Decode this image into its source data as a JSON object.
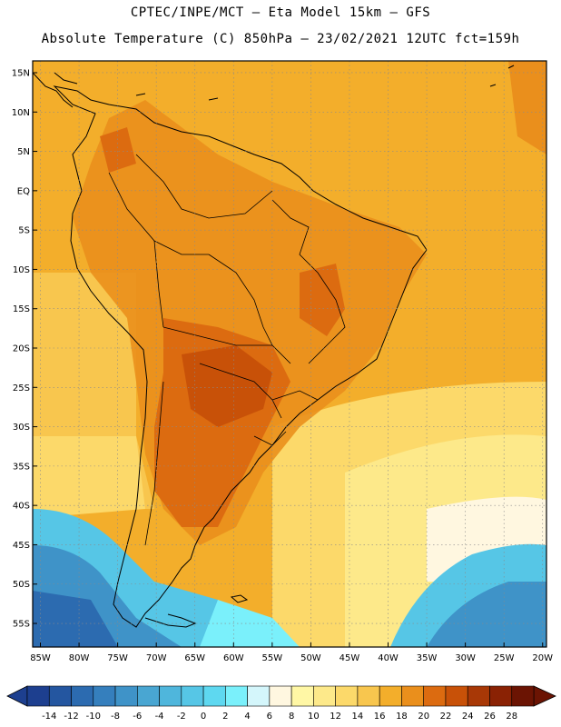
{
  "header": {
    "line1": "CPTEC/INPE/MCT –  Eta Model 15km – GFS",
    "line2": "Absolute Temperature (C) 850hPa – 23/02/2021 12UTC fct=159h"
  },
  "map": {
    "lat_labels": [
      "15N",
      "10N",
      "5N",
      "EQ",
      "5S",
      "10S",
      "15S",
      "20S",
      "25S",
      "30S",
      "35S",
      "40S",
      "45S",
      "50S",
      "55S"
    ],
    "lat_values": [
      15,
      10,
      5,
      0,
      -5,
      -10,
      -15,
      -20,
      -25,
      -30,
      -35,
      -40,
      -45,
      -50,
      -55
    ],
    "lon_labels": [
      "85W",
      "80W",
      "75W",
      "70W",
      "65W",
      "60W",
      "55W",
      "50W",
      "45W",
      "40W",
      "35W",
      "30W",
      "25W",
      "20W"
    ],
    "lon_values": [
      -85,
      -80,
      -75,
      -70,
      -65,
      -60,
      -55,
      -50,
      -45,
      -40,
      -35,
      -30,
      -25,
      -20
    ],
    "lon_range": [
      -86,
      -19.5
    ],
    "lat_range": [
      -58,
      16.5
    ],
    "grid": "dotted"
  },
  "colorbar": {
    "labels": [
      "-14",
      "-12",
      "-10",
      "-8",
      "-6",
      "-4",
      "-2",
      "0",
      "2",
      "4",
      "6",
      "8",
      "10",
      "12",
      "14",
      "16",
      "18",
      "20",
      "22",
      "24",
      "26",
      "28"
    ],
    "colors": [
      "#1d3f8f",
      "#2456a0",
      "#2c6bb0",
      "#357fbd",
      "#3f93c8",
      "#49a6d2",
      "#4fb6dc",
      "#56c6e6",
      "#5ed8f0",
      "#7af0fb",
      "#d4f6fb",
      "#fff7e0",
      "#fff7a5",
      "#fde98a",
      "#fcd96a",
      "#f8c64e",
      "#f3ae2b",
      "#ea8f1c",
      "#dc6b10",
      "#c85108",
      "#a83806",
      "#8a2204",
      "#6b1403"
    ],
    "units": "C"
  }
}
